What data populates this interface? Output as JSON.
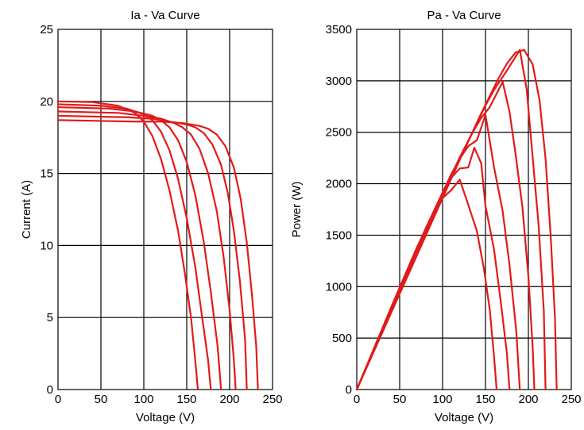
{
  "chart_data": [
    {
      "type": "line",
      "title": "Ia - Va Curve",
      "xlabel": "Voltage (V)",
      "ylabel": "Current (A)",
      "xlim": [
        0,
        250
      ],
      "ylim": [
        0,
        25
      ],
      "xticks": [
        0,
        50,
        100,
        150,
        200,
        250
      ],
      "yticks": [
        0,
        5,
        10,
        15,
        20,
        25
      ],
      "grid": true,
      "color": "#e21a1a",
      "series": [
        {
          "values": [
            [
              0,
              20.0
            ],
            [
              40,
              19.95
            ],
            [
              70,
              19.7
            ],
            [
              90,
              19.2
            ],
            [
              100,
              18.6
            ],
            [
              110,
              17.6
            ],
            [
              120,
              16.0
            ],
            [
              130,
              13.8
            ],
            [
              140,
              11.0
            ],
            [
              148,
              8.0
            ],
            [
              155,
              5.0
            ],
            [
              160,
              2.0
            ],
            [
              163,
              0
            ]
          ]
        },
        {
          "values": [
            [
              0,
              19.8
            ],
            [
              50,
              19.7
            ],
            [
              80,
              19.5
            ],
            [
              100,
              19.1
            ],
            [
              110,
              18.7
            ],
            [
              120,
              17.9
            ],
            [
              130,
              16.6
            ],
            [
              140,
              14.6
            ],
            [
              150,
              11.9
            ],
            [
              160,
              8.5
            ],
            [
              168,
              5.0
            ],
            [
              175,
              2.0
            ],
            [
              178,
              0
            ]
          ]
        },
        {
          "values": [
            [
              0,
              19.6
            ],
            [
              60,
              19.5
            ],
            [
              90,
              19.3
            ],
            [
              110,
              19.0
            ],
            [
              120,
              18.7
            ],
            [
              130,
              18.2
            ],
            [
              140,
              17.3
            ],
            [
              150,
              15.8
            ],
            [
              160,
              13.5
            ],
            [
              170,
              10.2
            ],
            [
              178,
              6.8
            ],
            [
              186,
              3.0
            ],
            [
              190,
              0
            ]
          ]
        },
        {
          "values": [
            [
              0,
              19.3
            ],
            [
              70,
              19.2
            ],
            [
              100,
              19.0
            ],
            [
              120,
              18.8
            ],
            [
              135,
              18.5
            ],
            [
              145,
              18.2
            ],
            [
              155,
              17.7
            ],
            [
              165,
              16.7
            ],
            [
              175,
              15.0
            ],
            [
              185,
              12.4
            ],
            [
              193,
              9.2
            ],
            [
              200,
              5.5
            ],
            [
              205,
              2.0
            ],
            [
              207,
              0
            ]
          ]
        },
        {
          "values": [
            [
              0,
              19.0
            ],
            [
              80,
              18.9
            ],
            [
              110,
              18.8
            ],
            [
              130,
              18.6
            ],
            [
              150,
              18.4
            ],
            [
              160,
              18.2
            ],
            [
              170,
              17.8
            ],
            [
              180,
              17.0
            ],
            [
              190,
              15.6
            ],
            [
              198,
              13.6
            ],
            [
              205,
              11.0
            ],
            [
              212,
              7.5
            ],
            [
              218,
              3.5
            ],
            [
              220,
              0
            ]
          ]
        },
        {
          "values": [
            [
              0,
              18.7
            ],
            [
              90,
              18.6
            ],
            [
              120,
              18.6
            ],
            [
              145,
              18.5
            ],
            [
              165,
              18.3
            ],
            [
              175,
              18.1
            ],
            [
              185,
              17.7
            ],
            [
              195,
              16.9
            ],
            [
              205,
              15.4
            ],
            [
              213,
              13.2
            ],
            [
              220,
              10.2
            ],
            [
              226,
              6.6
            ],
            [
              231,
              3.0
            ],
            [
              233,
              0
            ]
          ]
        }
      ]
    },
    {
      "type": "line",
      "title": "Pa - Va Curve",
      "xlabel": "Voltage (V)",
      "ylabel": "Power (W)",
      "xlim": [
        0,
        250
      ],
      "ylim": [
        0,
        3500
      ],
      "xticks": [
        0,
        50,
        100,
        150,
        200,
        250
      ],
      "yticks": [
        0,
        500,
        1000,
        1500,
        2000,
        2500,
        3000,
        3500
      ],
      "grid": true,
      "color": "#e21a1a",
      "series": [
        {
          "values": [
            [
              0,
              0
            ],
            [
              40,
              798
            ],
            [
              70,
              1379
            ],
            [
              90,
              1728
            ],
            [
              100,
              1860
            ],
            [
              110,
              1936
            ],
            [
              120,
              2040
            ],
            [
              130,
              1794
            ],
            [
              140,
              1540
            ],
            [
              148,
              1184
            ],
            [
              155,
              775
            ],
            [
              160,
              320
            ],
            [
              163,
              0
            ]
          ]
        },
        {
          "values": [
            [
              0,
              0
            ],
            [
              50,
              985
            ],
            [
              80,
              1560
            ],
            [
              100,
              1910
            ],
            [
              110,
              2057
            ],
            [
              120,
              2148
            ],
            [
              130,
              2158
            ],
            [
              137,
              2350
            ],
            [
              145,
              2200
            ],
            [
              150,
              1785
            ],
            [
              160,
              1360
            ],
            [
              168,
              840
            ],
            [
              175,
              350
            ],
            [
              178,
              0
            ]
          ]
        },
        {
          "values": [
            [
              0,
              0
            ],
            [
              60,
              1170
            ],
            [
              90,
              1737
            ],
            [
              110,
              2090
            ],
            [
              120,
              2244
            ],
            [
              130,
              2366
            ],
            [
              140,
              2422
            ],
            [
              150,
              2670
            ],
            [
              160,
              2160
            ],
            [
              170,
              1734
            ],
            [
              178,
              1210
            ],
            [
              186,
              558
            ],
            [
              190,
              0
            ]
          ]
        },
        {
          "values": [
            [
              0,
              0
            ],
            [
              70,
              1344
            ],
            [
              100,
              1900
            ],
            [
              120,
              2256
            ],
            [
              135,
              2498
            ],
            [
              145,
              2639
            ],
            [
              155,
              2744
            ],
            [
              170,
              2990
            ],
            [
              178,
              2700
            ],
            [
              185,
              2294
            ],
            [
              193,
              1776
            ],
            [
              200,
              1100
            ],
            [
              205,
              410
            ],
            [
              207,
              0
            ]
          ]
        },
        {
          "values": [
            [
              0,
              0
            ],
            [
              80,
              1512
            ],
            [
              110,
              2068
            ],
            [
              130,
              2418
            ],
            [
              150,
              2760
            ],
            [
              160,
              2912
            ],
            [
              175,
              3100
            ],
            [
              190,
              3300
            ],
            [
              198,
              2920
            ],
            [
              205,
              2255
            ],
            [
              212,
              1590
            ],
            [
              218,
              763
            ],
            [
              220,
              0
            ]
          ]
        },
        {
          "values": [
            [
              0,
              0
            ],
            [
              90,
              1674
            ],
            [
              120,
              2232
            ],
            [
              145,
              2683
            ],
            [
              165,
              3020
            ],
            [
              175,
              3168
            ],
            [
              185,
              3275
            ],
            [
              195,
              3300
            ],
            [
              205,
              3160
            ],
            [
              213,
              2812
            ],
            [
              220,
              2244
            ],
            [
              226,
              1492
            ],
            [
              231,
              693
            ],
            [
              233,
              0
            ]
          ]
        }
      ]
    }
  ]
}
